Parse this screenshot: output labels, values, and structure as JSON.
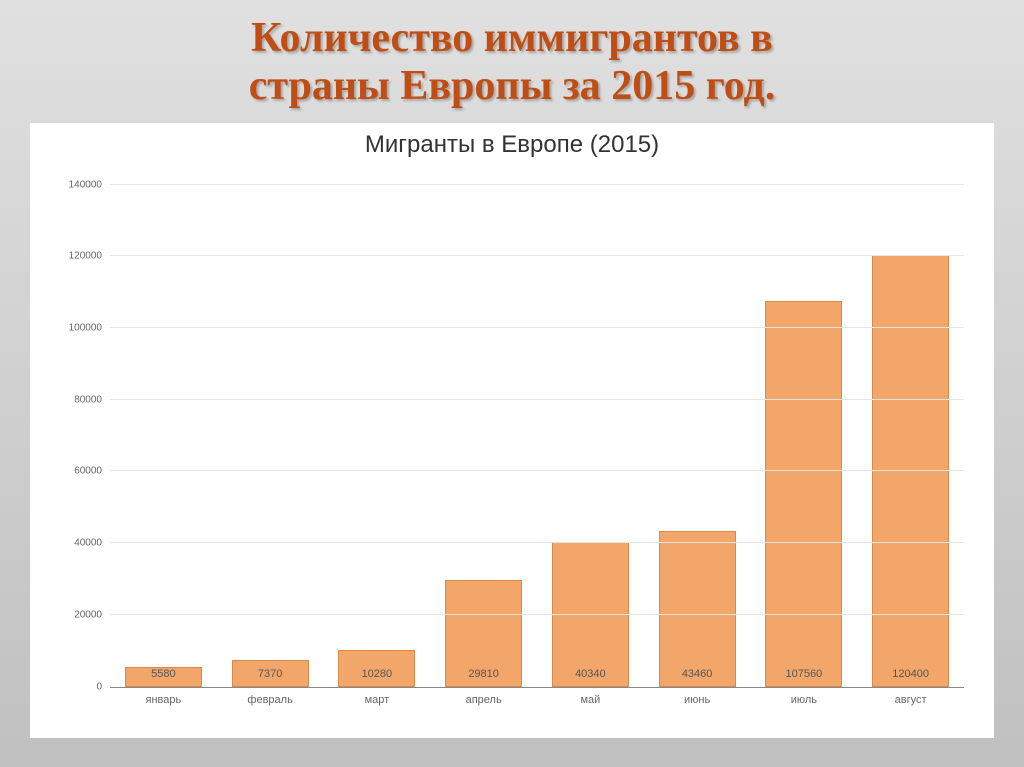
{
  "slide": {
    "title_line1": "Количество иммигрантов в",
    "title_line2": "страны Европы за 2015 год.",
    "title_color": "#c04e14",
    "title_fontsize": 42,
    "background_gradient": [
      "#e0e0e0",
      "#c0c0c0"
    ]
  },
  "chart": {
    "type": "bar",
    "title": "Мигранты в Европе (2015)",
    "title_fontsize": 24,
    "title_color": "#333333",
    "background_color": "#ffffff",
    "grid_color": "#e5e5e5",
    "axis_color": "#888888",
    "tick_label_color": "#666666",
    "tick_fontsize": 10,
    "bar_color": "#f2a66a",
    "bar_border_color": "#d98a4a",
    "bar_width_ratio": 0.72,
    "value_label_color": "#555555",
    "ylim": [
      0,
      145000
    ],
    "ytick_step": 20000,
    "yticks": [
      {
        "v": 0,
        "label": "0"
      },
      {
        "v": 20000,
        "label": "20000"
      },
      {
        "v": 40000,
        "label": "40000"
      },
      {
        "v": 60000,
        "label": "60000"
      },
      {
        "v": 80000,
        "label": "80000"
      },
      {
        "v": 100000,
        "label": "100000"
      },
      {
        "v": 120000,
        "label": "120000"
      },
      {
        "v": 140000,
        "label": "140000"
      }
    ],
    "categories": [
      "январь",
      "февраль",
      "март",
      "апрель",
      "май",
      "июнь",
      "июль",
      "август"
    ],
    "values": [
      5580,
      7370,
      10280,
      29810,
      40340,
      43460,
      107560,
      120400
    ],
    "value_labels": [
      "5580",
      "7370",
      "10280",
      "29810",
      "40340",
      "43460",
      "107560",
      "120400"
    ]
  }
}
